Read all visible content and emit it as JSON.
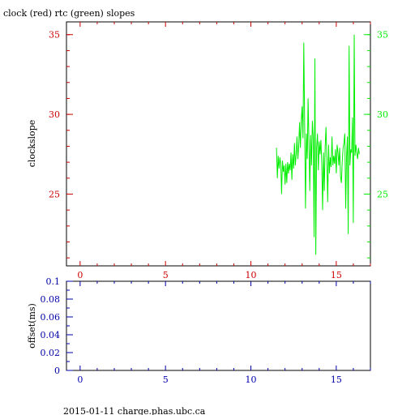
{
  "title": "clock (red) rtc (green) slopes",
  "footer": "2015-01-11 charge.phas.ubc.ca",
  "colors": {
    "red": "#cc0000",
    "green": "#00ee00",
    "blue": "#0000aa",
    "black": "#000000"
  },
  "chart_data": [
    {
      "type": "line",
      "ylabel": "clockslope",
      "xlim": [
        -0.8,
        17.0
      ],
      "ylim": [
        20.5,
        35.8
      ],
      "x_ticks": [
        0,
        5,
        10,
        15
      ],
      "x_tick_labels": [
        "0",
        "5",
        "10",
        "15"
      ],
      "y_ticks": [
        25,
        30,
        35
      ],
      "y_tick_labels": [
        "25",
        "30",
        "35"
      ],
      "right_y_tick_labels": [
        "25",
        "30",
        "35"
      ],
      "series": [
        {
          "color": "green",
          "x": [
            11.5,
            11.55,
            11.6,
            11.65,
            11.7,
            11.75,
            11.8,
            11.85,
            11.9,
            11.95,
            12.0,
            12.05,
            12.1,
            12.15,
            12.2,
            12.25,
            12.3,
            12.35,
            12.4,
            12.45,
            12.5,
            12.55,
            12.6,
            12.65,
            12.7,
            12.75,
            12.8,
            12.85,
            12.9,
            12.95,
            13.0,
            13.05,
            13.1,
            13.15,
            13.2,
            13.25,
            13.3,
            13.35,
            13.4,
            13.45,
            13.5,
            13.55,
            13.6,
            13.65,
            13.7,
            13.75,
            13.8,
            13.85,
            13.9,
            13.95,
            14.0,
            14.05,
            14.1,
            14.15,
            14.2,
            14.25,
            14.3,
            14.35,
            14.4,
            14.45,
            14.5,
            14.55,
            14.6,
            14.65,
            14.7,
            14.75,
            14.8,
            14.85,
            14.9,
            14.95,
            15.0,
            15.05,
            15.1,
            15.15,
            15.2,
            15.25,
            15.3,
            15.35,
            15.4,
            15.45,
            15.5,
            15.55,
            15.6,
            15.65,
            15.7,
            15.75,
            15.8,
            15.85,
            15.9,
            15.95,
            16.0,
            16.05,
            16.1,
            16.15,
            16.2,
            16.25,
            16.3,
            16.35
          ],
          "values": [
            27.9,
            26.0,
            27.4,
            26.6,
            27.3,
            26.9,
            25.0,
            27.1,
            26.4,
            26.8,
            25.6,
            26.9,
            25.7,
            27.0,
            26.3,
            26.9,
            26.5,
            27.6,
            25.9,
            27.5,
            26.6,
            28.2,
            26.8,
            27.5,
            28.6,
            27.2,
            28.0,
            29.5,
            27.9,
            29.6,
            30.5,
            28.5,
            34.5,
            29.1,
            24.1,
            28.8,
            27.2,
            31.0,
            28.2,
            25.2,
            28.7,
            26.8,
            29.6,
            28.6,
            22.3,
            33.5,
            21.2,
            27.9,
            28.8,
            26.5,
            28.3,
            27.5,
            28.4,
            26.9,
            24.0,
            27.6,
            25.2,
            28.0,
            29.2,
            27.1,
            24.5,
            28.1,
            26.3,
            27.3,
            26.7,
            28.6,
            26.8,
            27.4,
            26.9,
            27.8,
            26.3,
            28.1,
            27.6,
            26.8,
            27.9,
            26.1,
            25.7,
            27.0,
            27.9,
            28.2,
            28.8,
            24.1,
            27.3,
            28.6,
            22.5,
            34.3,
            26.8,
            27.8,
            27.6,
            29.8,
            23.2,
            35.0,
            27.4,
            28.1,
            27.6,
            27.2,
            27.9,
            27.5
          ]
        }
      ]
    },
    {
      "type": "line",
      "ylabel": "offset(ms)",
      "xlim": [
        -0.8,
        17.0
      ],
      "ylim": [
        0,
        0.1
      ],
      "x_ticks": [
        0,
        5,
        10,
        15
      ],
      "x_tick_labels": [
        "0",
        "5",
        "10",
        "15"
      ],
      "y_ticks": [
        0,
        0.02,
        0.04,
        0.06,
        0.08,
        0.1
      ],
      "y_tick_labels": [
        "0",
        "0.02",
        "0.04",
        "0.06",
        "0.08",
        "0.1"
      ],
      "series": []
    }
  ]
}
